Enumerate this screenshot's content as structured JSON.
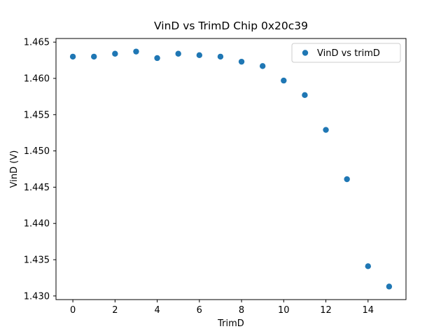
{
  "chart_data": {
    "type": "scatter",
    "title": "VinD vs TrimD Chip 0x20c39",
    "xlabel": "TrimD",
    "ylabel": "VinD (V)",
    "x": [
      0,
      1,
      2,
      3,
      4,
      5,
      6,
      7,
      8,
      9,
      10,
      11,
      12,
      13,
      14,
      15
    ],
    "y": [
      1.463,
      1.463,
      1.4634,
      1.4637,
      1.4628,
      1.4634,
      1.4632,
      1.463,
      1.4623,
      1.4617,
      1.4597,
      1.4577,
      1.4529,
      1.4461,
      1.4341,
      1.4313
    ],
    "xlim": [
      -0.8,
      15.8
    ],
    "ylim": [
      1.4295,
      1.4655
    ],
    "xticks": [
      0,
      2,
      4,
      6,
      8,
      10,
      12,
      14
    ],
    "yticks": [
      1.43,
      1.435,
      1.44,
      1.445,
      1.45,
      1.455,
      1.46,
      1.465
    ],
    "legend": {
      "label": "VinD vs trimD",
      "position": "upper right"
    },
    "marker_color": "#1f77b4",
    "axis_color": "#000000",
    "legend_border_color": "#cccccc",
    "grid": false
  }
}
